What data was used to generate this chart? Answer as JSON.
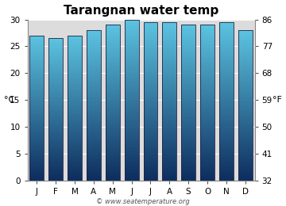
{
  "title": "Tarangnan water temp",
  "months": [
    "J",
    "F",
    "M",
    "A",
    "M",
    "J",
    "J",
    "A",
    "S",
    "O",
    "N",
    "D"
  ],
  "values_c": [
    27.0,
    26.5,
    27.0,
    28.0,
    29.0,
    30.0,
    29.5,
    29.5,
    29.0,
    29.0,
    29.5,
    28.0
  ],
  "ylim_c": [
    0,
    30
  ],
  "ylim_f": [
    32,
    86
  ],
  "yticks_c": [
    0,
    5,
    10,
    15,
    20,
    25,
    30
  ],
  "yticks_f": [
    32,
    41,
    50,
    59,
    68,
    77,
    86
  ],
  "ylabel_left": "°C",
  "ylabel_right": "°F",
  "bar_color_top": "#5bc3e0",
  "bar_color_bottom": "#0d2d5e",
  "bar_border_color": "#222244",
  "bg_color": "#dcdcdc",
  "fig_color": "#ffffff",
  "watermark": "© www.seatemperature.org",
  "title_fontsize": 11,
  "tick_fontsize": 7.5,
  "label_fontsize": 8,
  "bar_width": 0.75,
  "num_gradient_steps": 200
}
